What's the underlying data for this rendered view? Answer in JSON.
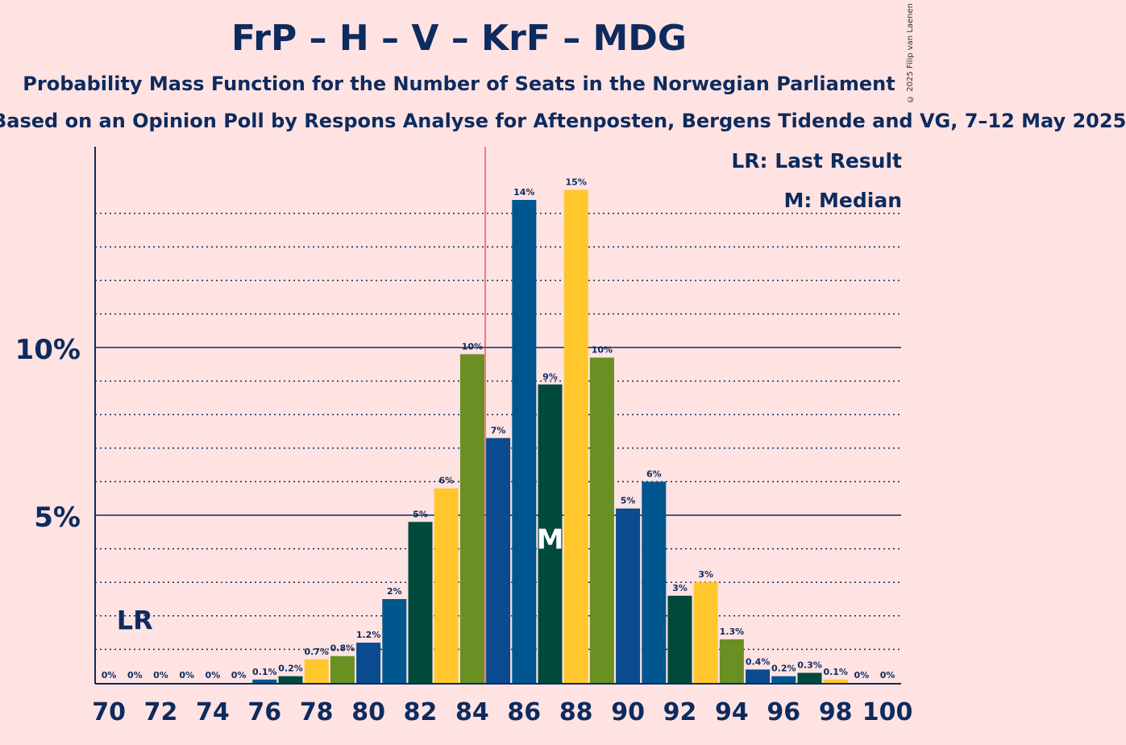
{
  "title": "FrP – H – V – KrF – MDG",
  "subtitle": "Probability Mass Function for the Number of Seats in the Norwegian Parliament",
  "subtitle2": "Based on an Opinion Poll by Respons Analyse for Aftenposten, Bergens Tidende and VG, 7–12 May 2025",
  "copyright": "© 2025 Filip van Laenen",
  "legend": {
    "lr": "LR: Last Result",
    "median": "M: Median"
  },
  "markers": {
    "lr": "LR",
    "median": "M"
  },
  "colors": {
    "background": "#FFE3E3",
    "text": "#0D2B5E",
    "majorline": "#0D2B5E",
    "lastresult": "#E53935",
    "palette": [
      "#0A4A8F",
      "#00578F",
      "#004A3C",
      "#FFC72C",
      "#6A8F22"
    ]
  },
  "chart_data": {
    "type": "bar",
    "x": [
      70,
      71,
      72,
      73,
      74,
      75,
      76,
      77,
      78,
      79,
      80,
      81,
      82,
      83,
      84,
      85,
      86,
      87,
      88,
      89,
      90,
      91,
      92,
      93,
      94,
      95,
      96,
      97,
      98,
      99,
      100
    ],
    "values": [
      0,
      0,
      0,
      0,
      0,
      0,
      0.1,
      0.2,
      0.7,
      0.8,
      1.2,
      2.5,
      4.8,
      5.8,
      9.8,
      7.3,
      14.4,
      8.9,
      14.7,
      9.7,
      5.2,
      6.0,
      2.6,
      3.0,
      1.3,
      0.4,
      0.2,
      0.3,
      0.1,
      0,
      0
    ],
    "labels": [
      "0%",
      "0%",
      "0%",
      "0%",
      "0%",
      "0%",
      "0.1%",
      "0.2%",
      "0.7%",
      "0.8%",
      "1.2%",
      "2%",
      "5%",
      "6%",
      "10%",
      "7%",
      "14%",
      "9%",
      "15%",
      "10%",
      "5%",
      "6%",
      "3%",
      "3%",
      "1.3%",
      "0.4%",
      "0.2%",
      "0.3%",
      "0.1%",
      "0%",
      "0%"
    ],
    "color_index": [
      2,
      3,
      4,
      0,
      1,
      2,
      1,
      2,
      3,
      4,
      0,
      1,
      2,
      3,
      4,
      0,
      1,
      2,
      3,
      4,
      0,
      1,
      2,
      3,
      4,
      0,
      1,
      2,
      3,
      4,
      0
    ],
    "xticks": [
      70,
      72,
      74,
      76,
      78,
      80,
      82,
      84,
      86,
      88,
      90,
      92,
      94,
      96,
      98,
      100
    ],
    "yticks": [
      {
        "value": 5,
        "label": "5%"
      },
      {
        "value": 10,
        "label": "10%"
      }
    ],
    "ylim": [
      0,
      16
    ],
    "last_result": 71,
    "median": 87,
    "majority_line": 84.5,
    "grid": "dotted every 1%"
  }
}
